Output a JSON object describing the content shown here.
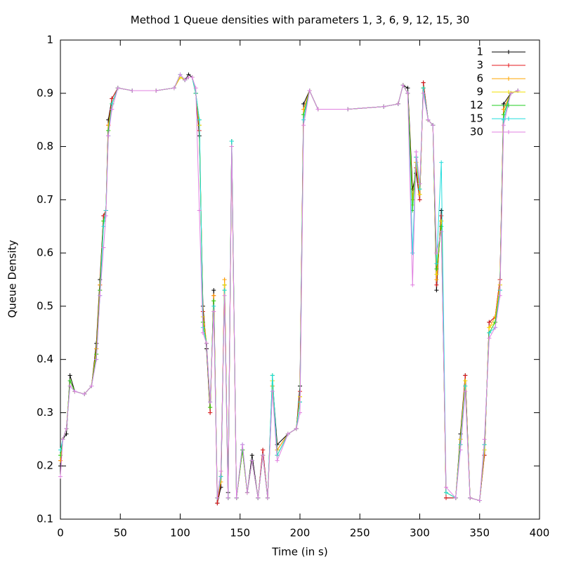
{
  "chart_data": {
    "type": "line",
    "title": "Method 1 Queue densities with parameters 1, 3, 6, 9, 12, 15, 30",
    "x_label": "Time (in s)",
    "y_label": "Queue Density",
    "xlim": [
      0,
      400
    ],
    "ylim": [
      0.1,
      1
    ],
    "xticks": [
      0,
      50,
      100,
      150,
      200,
      250,
      300,
      350,
      400
    ],
    "yticks": [
      0.1,
      0.2,
      0.3,
      0.4,
      0.5,
      0.6,
      0.7,
      0.8,
      0.9,
      1
    ],
    "legend": "upper right",
    "x": [
      0,
      2,
      5,
      8,
      12,
      20,
      26,
      30,
      33,
      36,
      38,
      40,
      43,
      48,
      60,
      80,
      95,
      100,
      104,
      107,
      110,
      113,
      116,
      119,
      122,
      125,
      128,
      131,
      134,
      137,
      140,
      143,
      147,
      152,
      156,
      160,
      165,
      169,
      173,
      177,
      181,
      190,
      197,
      200,
      203,
      208,
      215,
      240,
      270,
      282,
      286,
      290,
      294,
      297,
      300,
      303,
      307,
      311,
      314,
      318,
      322,
      330,
      334,
      338,
      342,
      350,
      354,
      358,
      363,
      367,
      370,
      376,
      382
    ],
    "series": [
      {
        "name": "1",
        "color": "#000000",
        "values": [
          0.2,
          0.25,
          0.26,
          0.37,
          0.34,
          0.335,
          0.35,
          0.43,
          0.55,
          0.67,
          0.68,
          0.85,
          0.89,
          0.91,
          0.905,
          0.905,
          0.91,
          0.93,
          0.925,
          0.935,
          0.93,
          0.9,
          0.82,
          0.5,
          0.42,
          0.3,
          0.53,
          0.13,
          0.16,
          0.54,
          0.15,
          0.81,
          0.14,
          0.23,
          0.15,
          0.22,
          0.14,
          0.23,
          0.14,
          0.36,
          0.24,
          0.26,
          0.27,
          0.35,
          0.88,
          0.905,
          0.87,
          0.87,
          0.875,
          0.88,
          0.915,
          0.91,
          0.72,
          0.75,
          0.7,
          0.92,
          0.85,
          0.84,
          0.53,
          0.68,
          0.14,
          0.14,
          0.26,
          0.37,
          0.14,
          0.135,
          0.22,
          0.47,
          0.48,
          0.55,
          0.88,
          0.9,
          0.905
        ]
      },
      {
        "name": "3",
        "color": "#e41a1c",
        "values": [
          0.21,
          0.25,
          0.27,
          0.36,
          0.34,
          0.335,
          0.35,
          0.42,
          0.54,
          0.67,
          0.68,
          0.84,
          0.89,
          0.91,
          0.905,
          0.905,
          0.91,
          0.93,
          0.925,
          0.93,
          0.93,
          0.9,
          0.83,
          0.49,
          0.43,
          0.3,
          0.52,
          0.13,
          0.17,
          0.55,
          0.14,
          0.8,
          0.14,
          0.23,
          0.15,
          0.21,
          0.14,
          0.23,
          0.14,
          0.35,
          0.23,
          0.26,
          0.27,
          0.34,
          0.87,
          0.905,
          0.87,
          0.87,
          0.875,
          0.88,
          0.915,
          0.9,
          0.7,
          0.76,
          0.7,
          0.92,
          0.85,
          0.84,
          0.54,
          0.67,
          0.14,
          0.14,
          0.25,
          0.37,
          0.14,
          0.135,
          0.22,
          0.47,
          0.48,
          0.55,
          0.87,
          0.9,
          0.905
        ]
      },
      {
        "name": "6",
        "color": "#ffa500",
        "values": [
          0.21,
          0.25,
          0.27,
          0.36,
          0.34,
          0.335,
          0.35,
          0.42,
          0.54,
          0.66,
          0.68,
          0.84,
          0.88,
          0.91,
          0.905,
          0.905,
          0.91,
          0.93,
          0.925,
          0.93,
          0.93,
          0.9,
          0.84,
          0.48,
          0.43,
          0.31,
          0.52,
          0.14,
          0.17,
          0.55,
          0.14,
          0.8,
          0.14,
          0.23,
          0.15,
          0.21,
          0.14,
          0.22,
          0.14,
          0.35,
          0.23,
          0.26,
          0.27,
          0.33,
          0.87,
          0.905,
          0.87,
          0.87,
          0.875,
          0.88,
          0.915,
          0.9,
          0.7,
          0.77,
          0.71,
          0.91,
          0.85,
          0.84,
          0.55,
          0.66,
          0.15,
          0.14,
          0.25,
          0.36,
          0.14,
          0.135,
          0.23,
          0.46,
          0.48,
          0.54,
          0.87,
          0.9,
          0.905
        ]
      },
      {
        "name": "9",
        "color": "#f0e000",
        "values": [
          0.22,
          0.25,
          0.27,
          0.36,
          0.34,
          0.335,
          0.35,
          0.41,
          0.53,
          0.66,
          0.68,
          0.83,
          0.88,
          0.91,
          0.905,
          0.905,
          0.91,
          0.93,
          0.925,
          0.93,
          0.93,
          0.9,
          0.84,
          0.48,
          0.43,
          0.31,
          0.51,
          0.14,
          0.18,
          0.54,
          0.14,
          0.8,
          0.14,
          0.23,
          0.15,
          0.21,
          0.14,
          0.22,
          0.14,
          0.36,
          0.22,
          0.26,
          0.27,
          0.33,
          0.86,
          0.905,
          0.87,
          0.87,
          0.875,
          0.88,
          0.915,
          0.9,
          0.69,
          0.77,
          0.71,
          0.91,
          0.85,
          0.84,
          0.56,
          0.66,
          0.15,
          0.14,
          0.25,
          0.36,
          0.14,
          0.135,
          0.23,
          0.46,
          0.47,
          0.54,
          0.86,
          0.9,
          0.905
        ]
      },
      {
        "name": "12",
        "color": "#22cc22",
        "values": [
          0.22,
          0.25,
          0.27,
          0.36,
          0.34,
          0.335,
          0.35,
          0.41,
          0.53,
          0.66,
          0.68,
          0.83,
          0.88,
          0.91,
          0.905,
          0.905,
          0.91,
          0.935,
          0.925,
          0.93,
          0.93,
          0.9,
          0.85,
          0.47,
          0.43,
          0.31,
          0.51,
          0.14,
          0.18,
          0.53,
          0.14,
          0.81,
          0.14,
          0.23,
          0.15,
          0.21,
          0.14,
          0.22,
          0.14,
          0.37,
          0.22,
          0.26,
          0.27,
          0.32,
          0.86,
          0.905,
          0.87,
          0.87,
          0.875,
          0.88,
          0.915,
          0.9,
          0.68,
          0.78,
          0.72,
          0.91,
          0.85,
          0.84,
          0.57,
          0.65,
          0.15,
          0.14,
          0.24,
          0.35,
          0.14,
          0.135,
          0.24,
          0.45,
          0.47,
          0.53,
          0.86,
          0.9,
          0.905
        ]
      },
      {
        "name": "15",
        "color": "#22dddd",
        "values": [
          0.23,
          0.25,
          0.27,
          0.35,
          0.34,
          0.335,
          0.35,
          0.4,
          0.52,
          0.65,
          0.68,
          0.82,
          0.88,
          0.91,
          0.905,
          0.905,
          0.91,
          0.935,
          0.925,
          0.93,
          0.93,
          0.9,
          0.85,
          0.46,
          0.43,
          0.32,
          0.5,
          0.14,
          0.18,
          0.53,
          0.14,
          0.81,
          0.14,
          0.24,
          0.15,
          0.21,
          0.14,
          0.22,
          0.14,
          0.37,
          0.22,
          0.26,
          0.27,
          0.32,
          0.85,
          0.905,
          0.87,
          0.87,
          0.875,
          0.88,
          0.915,
          0.9,
          0.6,
          0.78,
          0.72,
          0.91,
          0.85,
          0.84,
          0.58,
          0.77,
          0.15,
          0.14,
          0.24,
          0.35,
          0.14,
          0.135,
          0.24,
          0.45,
          0.46,
          0.53,
          0.85,
          0.9,
          0.905
        ]
      },
      {
        "name": "30",
        "color": "#e080e0",
        "values": [
          0.18,
          0.25,
          0.27,
          0.35,
          0.34,
          0.335,
          0.35,
          0.4,
          0.52,
          0.61,
          0.67,
          0.82,
          0.87,
          0.91,
          0.905,
          0.905,
          0.91,
          0.935,
          0.925,
          0.93,
          0.93,
          0.91,
          0.68,
          0.45,
          0.43,
          0.32,
          0.49,
          0.14,
          0.19,
          0.52,
          0.14,
          0.8,
          0.14,
          0.24,
          0.15,
          0.21,
          0.14,
          0.22,
          0.14,
          0.34,
          0.21,
          0.26,
          0.27,
          0.3,
          0.84,
          0.905,
          0.87,
          0.87,
          0.875,
          0.88,
          0.915,
          0.9,
          0.54,
          0.79,
          0.73,
          0.9,
          0.85,
          0.84,
          0.6,
          0.64,
          0.16,
          0.14,
          0.23,
          0.34,
          0.14,
          0.135,
          0.25,
          0.44,
          0.46,
          0.52,
          0.84,
          0.9,
          0.905
        ]
      }
    ]
  }
}
